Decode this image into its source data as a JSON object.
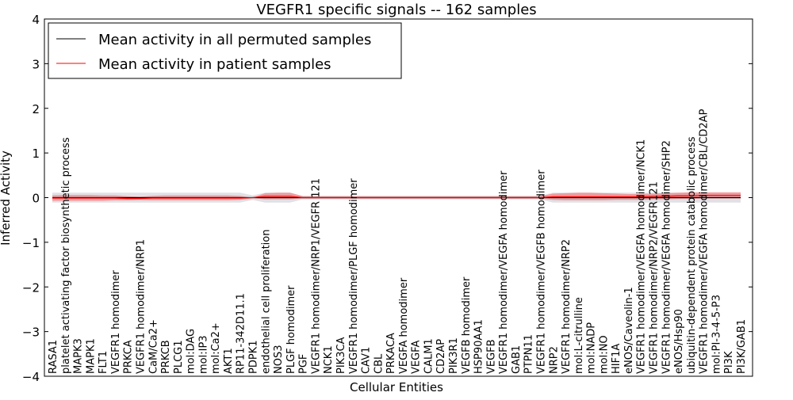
{
  "chart_data": {
    "type": "line",
    "title": "VEGFR1 specific signals -- 162 samples",
    "xlabel": "Cellular Entities",
    "ylabel": "Inferred Activity",
    "ylim": [
      -4,
      4
    ],
    "yticks": [
      -4,
      -3,
      -2,
      -1,
      0,
      1,
      2,
      3,
      4
    ],
    "grid": false,
    "legend_position": "top-left",
    "categories": [
      "RASA1",
      "platelet activating factor biosynthetic process",
      "MAPK3",
      "MAPK1",
      "FLT1",
      "VEGFR1 homodimer",
      "PRKCA",
      "VEGFR1 homodimer/NRP1",
      "CaM/Ca2+",
      "PRKCB",
      "PLCG1",
      "mol:DAG",
      "mol:IP3",
      "mol:Ca2+",
      "AKT1",
      "RP11-342D11.1",
      "PDPK1",
      "endothelial cell proliferation",
      "NOS3",
      "PLGF homodimer",
      "PGF",
      "VEGFR1 homodimer/NRP1/VEGFR 121",
      "NCK1",
      "PIK3CA",
      "VEGFR1 homodimer/PLGF homodimer",
      "CAV1",
      "CBL",
      "PRKACA",
      "VEGFA homodimer",
      "VEGFA",
      "CALM1",
      "CD2AP",
      "PIK3R1",
      "VEGFB homodimer",
      "HSP90AA1",
      "VEGFB",
      "VEGFR1 homodimer/VEGFA homodimer",
      "GAB1",
      "PTPN11",
      "VEGFR1 homodimer/VEGFB homodimer",
      "NRP2",
      "VEGFR1 homodimer/NRP2",
      "mol:L-citrulline",
      "mol:NADP",
      "mol:NO",
      "HIF1A",
      "eNOS/Caveolin-1",
      "VEGFR1 homodimer/VEGFA homodimer/NCK1",
      "VEGFR1 homodimer/NRP2/VEGFR121",
      "VEGFR1 homodimer/VEGFA homodimer/SHP2",
      "eNOS/Hsp90",
      "ubiquitin-dependent protein catabolic process",
      "VEGFR1 homodimer/VEGFA homodimer/CBL/CD2AP",
      "mol:PI-3-4-5-P3",
      "PI3K",
      "PI3K/GAB1"
    ],
    "series": [
      {
        "name": "Mean activity in all permuted samples",
        "color": "#000000",
        "values": [
          0,
          0,
          0,
          0,
          0,
          0,
          0,
          0,
          0,
          0,
          0,
          0,
          0,
          0,
          0,
          0,
          0,
          0,
          0,
          0,
          0,
          0,
          0,
          0,
          0,
          0,
          0,
          0,
          0,
          0,
          0,
          0,
          0,
          0,
          0,
          0,
          0,
          0,
          0,
          0,
          0,
          0,
          0,
          0,
          0,
          0,
          0,
          0,
          0,
          0,
          0,
          0,
          0,
          0,
          0,
          0
        ],
        "band_upper": [
          0.11,
          0.11,
          0.11,
          0.11,
          0.11,
          0.11,
          0.11,
          0.11,
          0.11,
          0.11,
          0.11,
          0.11,
          0.11,
          0.11,
          0.11,
          0.11,
          0.05,
          0.11,
          0.11,
          0.11,
          0.04,
          0.04,
          0.04,
          0.04,
          0.04,
          0.04,
          0.04,
          0.04,
          0.04,
          0.04,
          0.04,
          0.04,
          0.04,
          0.04,
          0.04,
          0.04,
          0.04,
          0.04,
          0.04,
          0.04,
          0.11,
          0.11,
          0.11,
          0.11,
          0.11,
          0.11,
          0.11,
          0.11,
          0.11,
          0.11,
          0.11,
          0.11,
          0.11,
          0.11,
          0.11,
          0.11
        ],
        "band_lower": [
          -0.11,
          -0.11,
          -0.11,
          -0.11,
          -0.11,
          -0.11,
          -0.11,
          -0.11,
          -0.11,
          -0.11,
          -0.11,
          -0.11,
          -0.11,
          -0.11,
          -0.11,
          -0.11,
          -0.05,
          -0.11,
          -0.11,
          -0.11,
          -0.04,
          -0.04,
          -0.04,
          -0.04,
          -0.04,
          -0.04,
          -0.04,
          -0.04,
          -0.04,
          -0.04,
          -0.04,
          -0.04,
          -0.04,
          -0.04,
          -0.04,
          -0.04,
          -0.04,
          -0.04,
          -0.04,
          -0.04,
          -0.11,
          -0.11,
          -0.11,
          -0.11,
          -0.11,
          -0.11,
          -0.11,
          -0.11,
          -0.11,
          -0.11,
          -0.11,
          -0.11,
          -0.11,
          -0.11,
          -0.11,
          -0.11
        ],
        "band_color": "#c8c8d0"
      },
      {
        "name": "Mean activity in patient samples",
        "color": "#ff0000",
        "values": [
          -0.01,
          -0.01,
          -0.01,
          -0.01,
          -0.01,
          -0.01,
          -0.02,
          -0.02,
          -0.01,
          -0.01,
          -0.01,
          -0.01,
          -0.01,
          -0.01,
          -0.01,
          -0.01,
          0.0,
          0.03,
          0.03,
          0.03,
          0.0,
          0.0,
          0.0,
          0.0,
          0.0,
          0.0,
          0.0,
          0.0,
          0.0,
          0.0,
          0.0,
          0.0,
          0.0,
          0.0,
          0.0,
          0.0,
          0.0,
          0.0,
          0.0,
          0.0,
          0.02,
          0.02,
          0.02,
          0.02,
          0.02,
          0.02,
          0.02,
          0.02,
          0.03,
          0.03,
          0.04,
          0.04,
          0.05,
          0.05,
          0.05,
          0.05
        ],
        "band_upper": [
          0.05,
          0.06,
          0.06,
          0.06,
          0.05,
          0.05,
          0.03,
          0.02,
          0.04,
          0.05,
          0.05,
          0.05,
          0.05,
          0.05,
          0.05,
          0.04,
          0.0,
          0.1,
          0.11,
          0.11,
          0.03,
          0.03,
          0.03,
          0.03,
          0.03,
          0.03,
          0.03,
          0.03,
          0.03,
          0.03,
          0.03,
          0.03,
          0.03,
          0.03,
          0.03,
          0.03,
          0.03,
          0.03,
          0.03,
          0.03,
          0.09,
          0.1,
          0.11,
          0.11,
          0.1,
          0.09,
          0.08,
          0.08,
          0.09,
          0.1,
          0.11,
          0.12,
          0.12,
          0.12,
          0.12,
          0.12
        ],
        "band_lower": [
          -0.07,
          -0.07,
          -0.07,
          -0.07,
          -0.07,
          -0.06,
          -0.06,
          -0.05,
          -0.06,
          -0.06,
          -0.06,
          -0.06,
          -0.06,
          -0.06,
          -0.06,
          -0.05,
          -0.01,
          -0.04,
          -0.04,
          -0.04,
          -0.02,
          -0.02,
          -0.02,
          -0.02,
          -0.02,
          -0.02,
          -0.02,
          -0.02,
          -0.02,
          -0.02,
          -0.02,
          -0.02,
          -0.02,
          -0.02,
          -0.02,
          -0.02,
          -0.02,
          -0.02,
          -0.02,
          -0.02,
          -0.05,
          -0.06,
          -0.06,
          -0.06,
          -0.06,
          -0.05,
          -0.05,
          -0.05,
          -0.04,
          -0.04,
          -0.03,
          -0.03,
          -0.02,
          -0.02,
          -0.02,
          -0.02
        ],
        "band_color": "#ff0000"
      }
    ]
  }
}
